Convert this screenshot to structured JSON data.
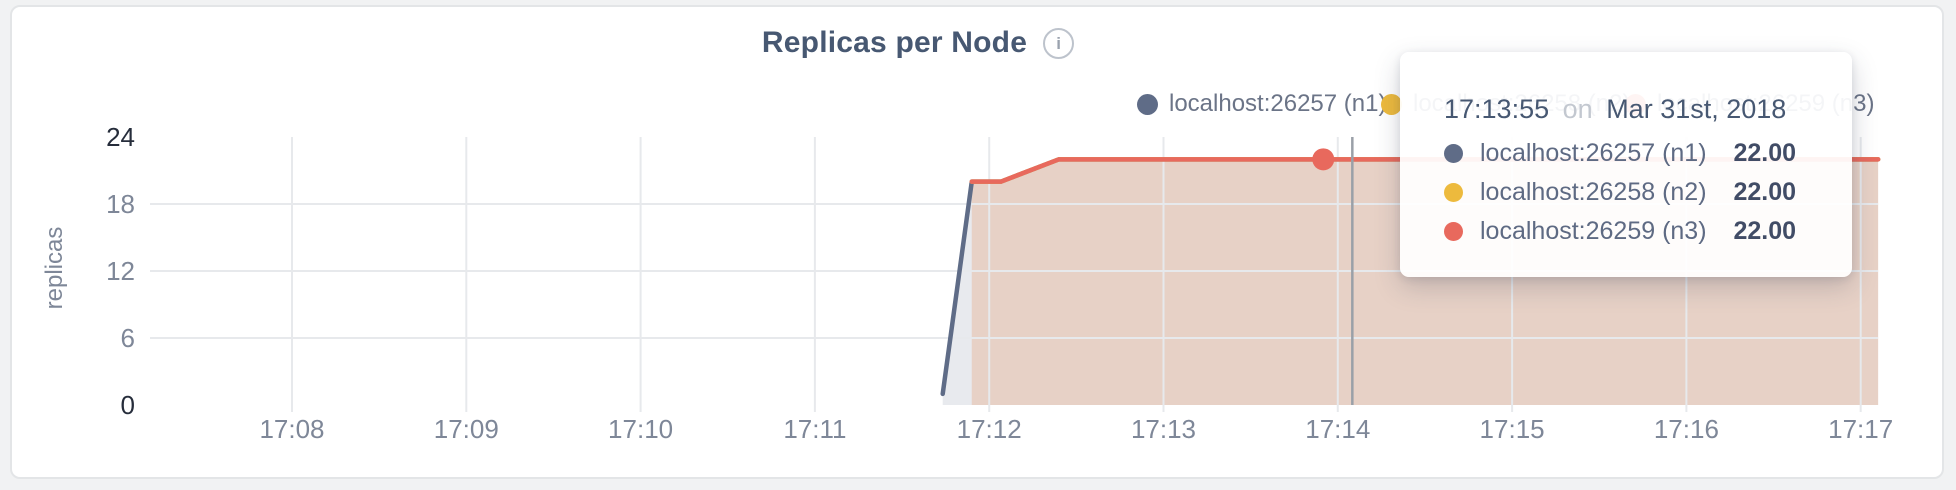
{
  "header": {
    "info_glyph": "i"
  },
  "tooltip": {
    "time": "17:13:55",
    "connector": "on",
    "date": "Mar 31st, 2018",
    "rows": [
      {
        "label": "localhost:26257 (n1)",
        "value": "22.00",
        "color": "#5f6c87"
      },
      {
        "label": "localhost:26258 (n2)",
        "value": "22.00",
        "color": "#edba3d"
      },
      {
        "label": "localhost:26259 (n3)",
        "value": "22.00",
        "color": "#e8695d"
      }
    ]
  },
  "legend": {
    "items": [
      {
        "label": "localhost:26257 (n1)",
        "color": "#5f6c87"
      },
      {
        "label": "localhost:26258 (n2)",
        "color": "#edba3d"
      },
      {
        "label": "localhost:26259 (n3)",
        "color": "#e8695d"
      }
    ]
  },
  "chart_data": {
    "type": "area",
    "title": "Replicas per Node",
    "xlabel": "",
    "ylabel": "replicas",
    "ylim": [
      0,
      24
    ],
    "y_ticks": [
      0,
      6,
      12,
      18,
      24
    ],
    "y_tick_emphasis": [
      0,
      24
    ],
    "x_ticks": [
      {
        "label": "17:08",
        "t": 480
      },
      {
        "label": "17:09",
        "t": 540
      },
      {
        "label": "17:10",
        "t": 600
      },
      {
        "label": "17:11",
        "t": 660
      },
      {
        "label": "17:12",
        "t": 720
      },
      {
        "label": "17:13",
        "t": 780
      },
      {
        "label": "17:14",
        "t": 840
      },
      {
        "label": "17:15",
        "t": 900
      },
      {
        "label": "17:16",
        "t": 960
      },
      {
        "label": "17:17",
        "t": 1020
      }
    ],
    "x_domain": {
      "start_t": 428,
      "end_t": 1026
    },
    "grid": true,
    "legend_position": "top-right",
    "series": [
      {
        "name": "localhost:26257 (n1)",
        "color": "#5f6c87",
        "fill": "rgba(95,108,135,0.14)",
        "points": [
          [
            704,
            1
          ],
          [
            714,
            20
          ],
          [
            724,
            20
          ],
          [
            744,
            22
          ],
          [
            1026,
            22
          ]
        ]
      },
      {
        "name": "localhost:26258 (n2)",
        "color": "#edba3d",
        "fill": "rgba(237,186,61,0.10)",
        "points": [
          [
            714,
            20
          ],
          [
            724,
            20
          ],
          [
            744,
            22
          ],
          [
            1026,
            22
          ]
        ]
      },
      {
        "name": "localhost:26259 (n3)",
        "color": "#e8695d",
        "fill": "rgba(232,105,93,0.16)",
        "points": [
          [
            714,
            20
          ],
          [
            724,
            20
          ],
          [
            744,
            22
          ],
          [
            1026,
            22
          ]
        ]
      }
    ],
    "hover": {
      "snap_t": 835,
      "crosshair_t": 845,
      "series_index": 2,
      "value": 22
    }
  }
}
